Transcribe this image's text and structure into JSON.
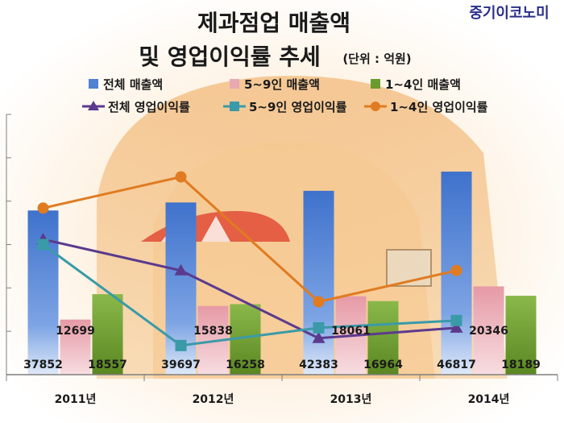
{
  "title_line1": "제과점업 매출액",
  "title_line2": "및 영업이익률 추세",
  "unit": "(단위 : 억원)",
  "brand": "중기이코노미",
  "colors": {
    "total_bar": "#4f81d4",
    "s59_bar": "#e9a9b3",
    "s14_bar": "#6b9a2e",
    "total_line": "#5b3a8e",
    "s59_line": "#3a9aa8",
    "s14_line": "#e07b22",
    "grid": "#7f7f7f"
  },
  "chart_data": {
    "type": "bar",
    "categories": [
      "2011년",
      "2012년",
      "2013년",
      "2014년"
    ],
    "title": "제과점업 매출액 및 영업이익률 추세",
    "unit": "(단위 : 억원)",
    "legend_position": "top",
    "grid": true,
    "ylim": [
      0,
      60000
    ],
    "series": [
      {
        "name": "전체 매출액",
        "kind": "bar",
        "values": [
          37852,
          39697,
          42383,
          46817
        ]
      },
      {
        "name": "5~9인 매출액",
        "kind": "bar",
        "values": [
          12699,
          15838,
          18061,
          20346
        ]
      },
      {
        "name": "1~4인 매출액",
        "kind": "bar",
        "values": [
          18557,
          16258,
          16964,
          18189
        ]
      },
      {
        "name": "전체 영업이익률",
        "kind": "line",
        "marker": "triangle",
        "values": [
          13.0,
          10.0,
          3.5,
          4.5
        ]
      },
      {
        "name": "5~9인 영업이익률",
        "kind": "line",
        "marker": "square",
        "values": [
          12.5,
          2.8,
          4.5,
          5.2
        ]
      },
      {
        "name": "1~4인 영업이익률",
        "kind": "line",
        "marker": "circle",
        "values": [
          16.0,
          19.0,
          7.0,
          10.0
        ]
      }
    ],
    "line_axis_range": [
      0,
      25
    ]
  }
}
